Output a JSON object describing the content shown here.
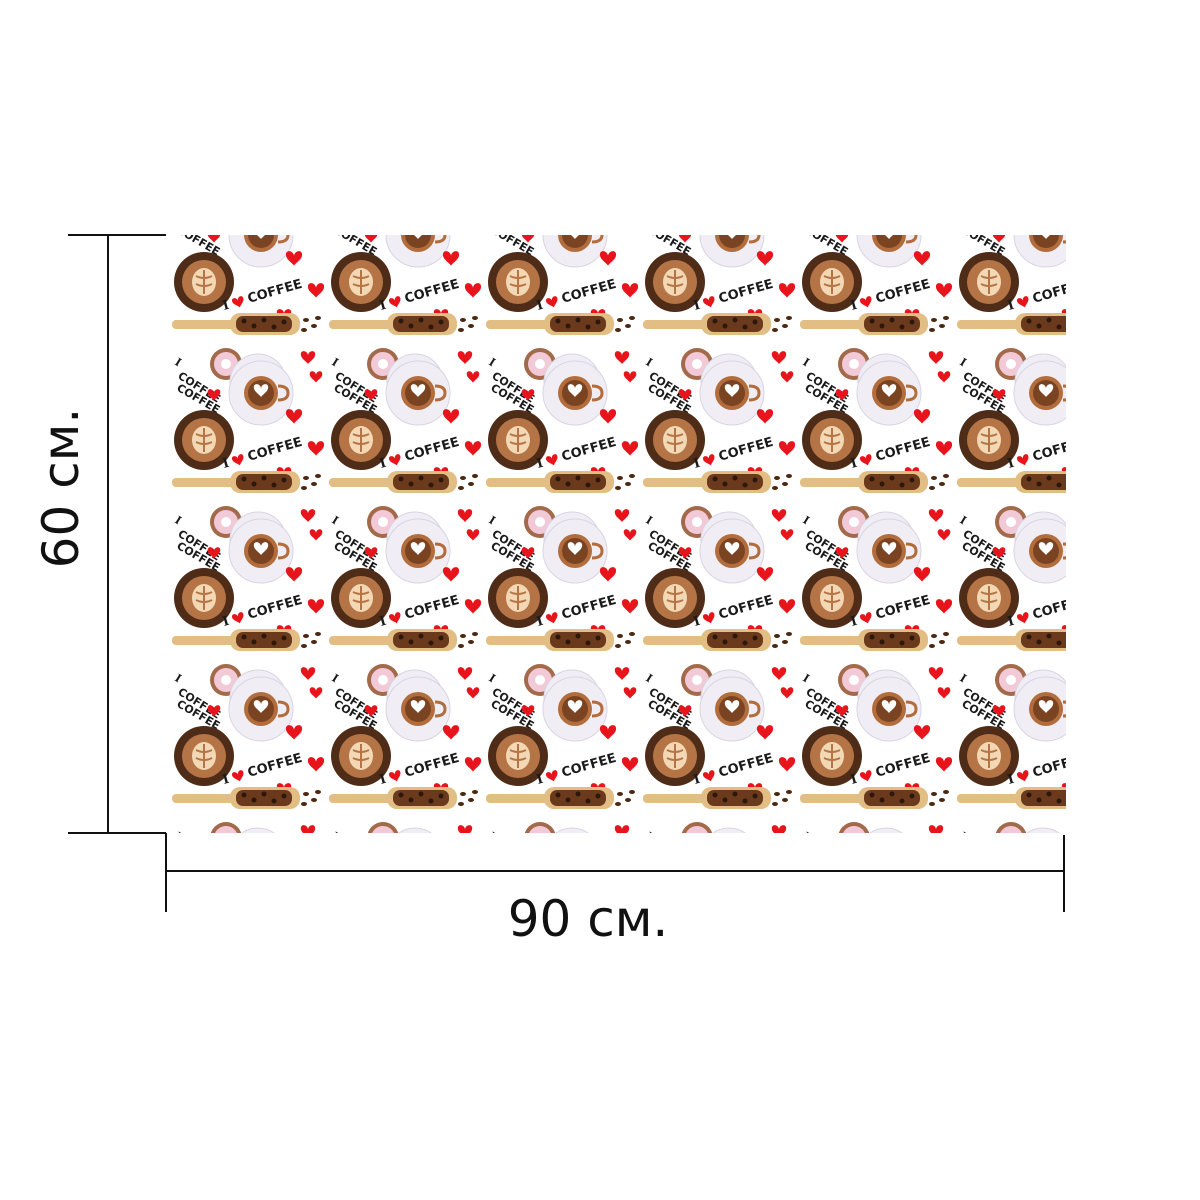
{
  "dimensions": {
    "width_label": "90 см.",
    "height_label": "60 см."
  },
  "pattern": {
    "slogan_prefix": "I",
    "slogan_word": "COFFEE",
    "motifs": [
      "latte-cup-icon",
      "coffee-cup-saucer-icon",
      "donut-icon",
      "coffee-bean-scoop-icon",
      "heart-icon",
      "i-love-coffee-text"
    ],
    "colors": {
      "background": "#ffffff",
      "heart": "#e8141c",
      "coffee_dark": "#5a3520",
      "coffee_foam": "#e9c79c",
      "wood": "#e2bd84",
      "text": "#1a1a1a"
    }
  },
  "lines": {
    "color": "#111111"
  }
}
